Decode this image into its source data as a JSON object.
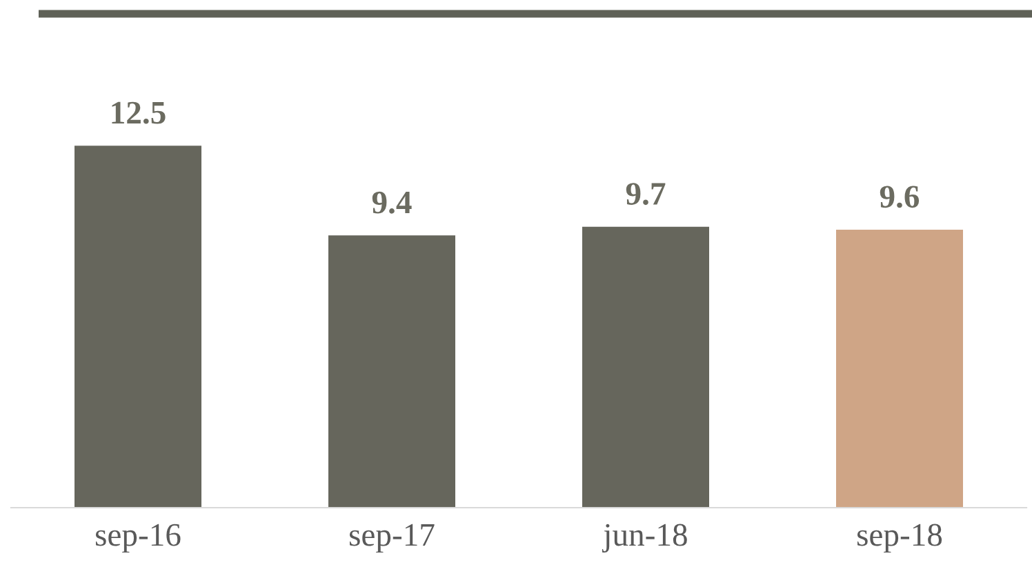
{
  "chart_data": {
    "type": "bar",
    "categories": [
      "sep-16",
      "sep-17",
      "jun-18",
      "sep-18"
    ],
    "values": [
      12.5,
      9.4,
      9.7,
      9.6
    ],
    "colors": [
      "#66665c",
      "#66665c",
      "#66665c",
      "#cfa586"
    ],
    "data_labels": true,
    "grid": false
  }
}
